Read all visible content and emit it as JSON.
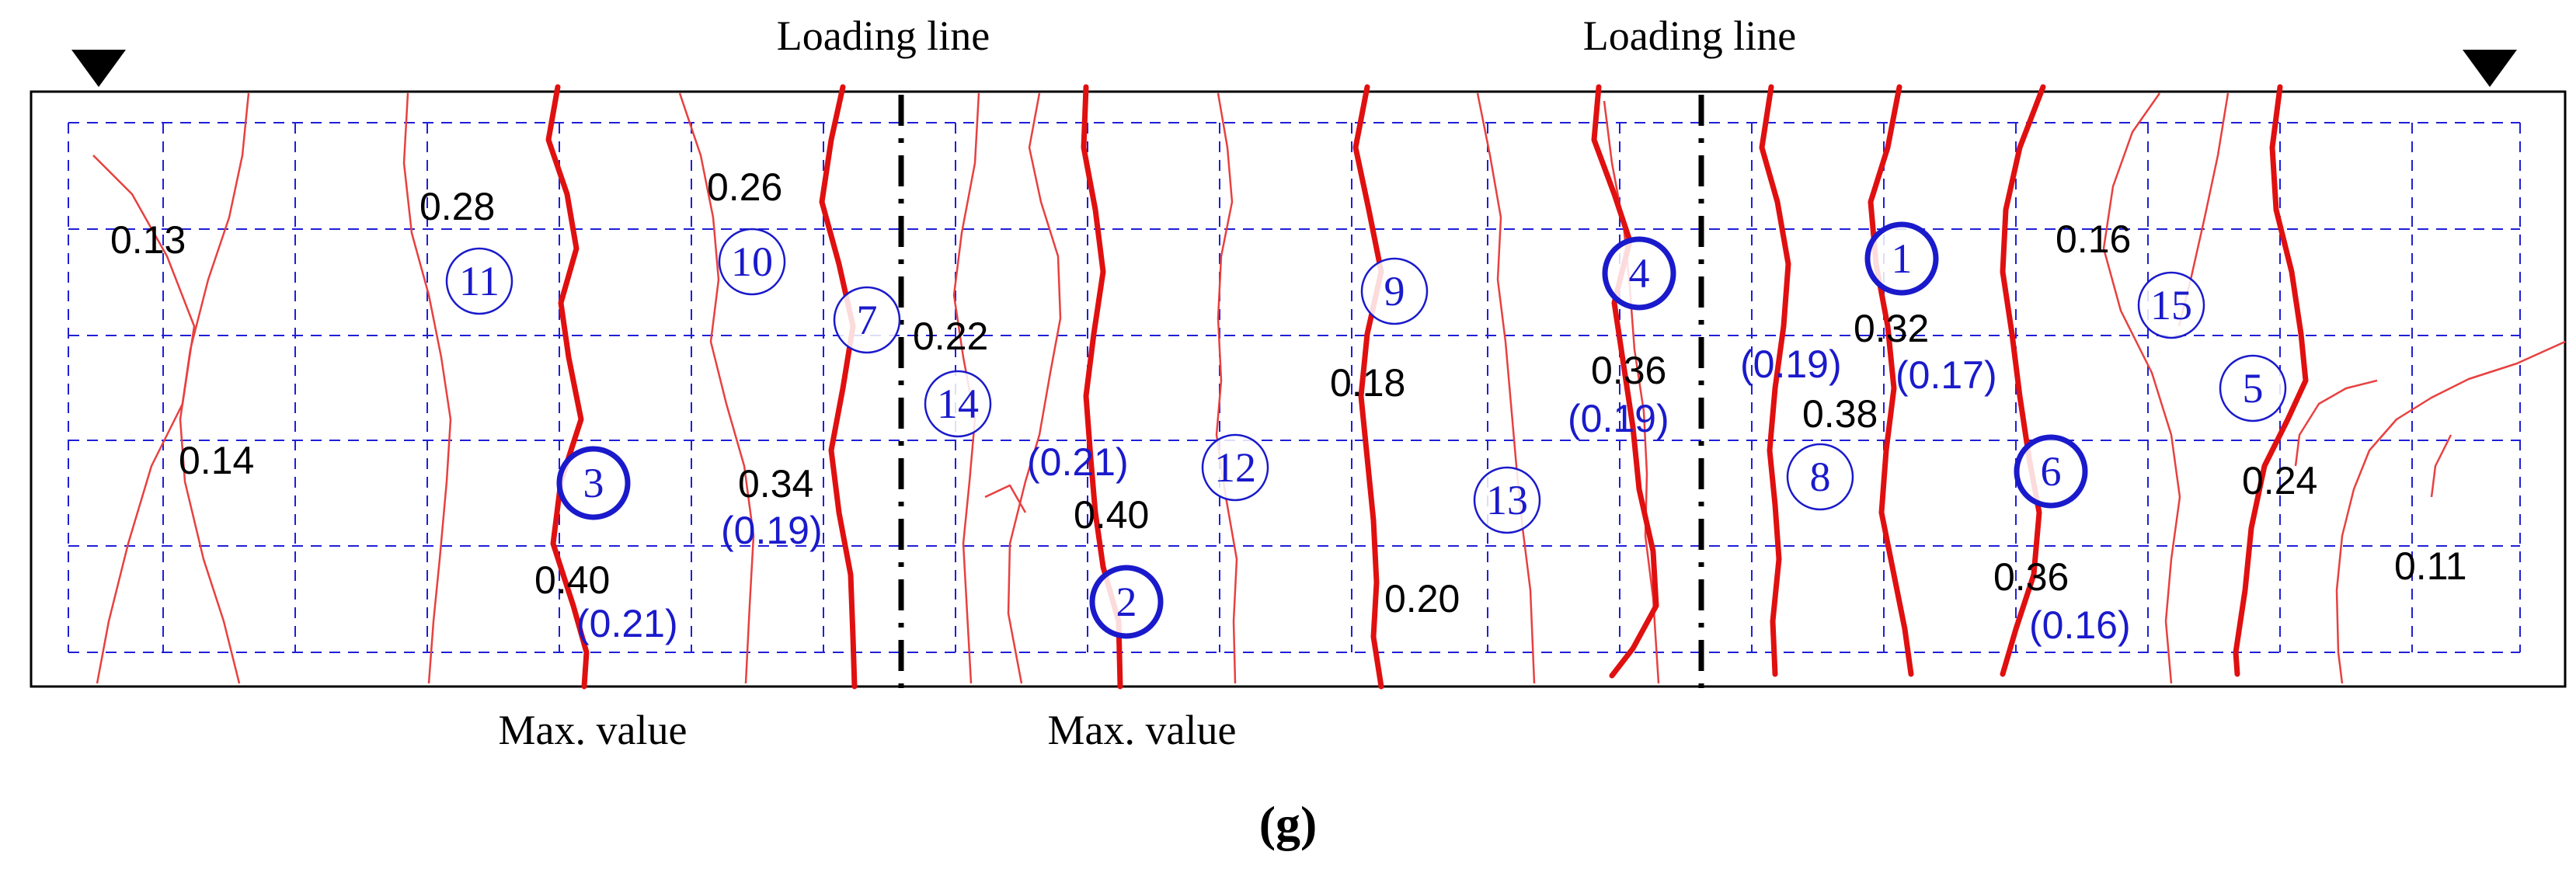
{
  "labels": {
    "loading_line_left": "Loading line",
    "loading_line_right": "Loading line",
    "max_value_left": "Max. value",
    "max_value_right": "Max. value",
    "figure_label": "(g)"
  },
  "colors": {
    "beam_outline": "#000000",
    "grid": "#1f1fd8",
    "major_crack": "#e01010",
    "minor_crack": "#e84040",
    "black_value": "#000000",
    "blue_value": "#1a1acc"
  },
  "crack_widths": [
    {
      "text": "0.13"
    },
    {
      "text": "0.14"
    },
    {
      "text": "0.28"
    },
    {
      "text": "0.40"
    },
    {
      "text": "(0.21)"
    },
    {
      "text": "0.26"
    },
    {
      "text": "0.34"
    },
    {
      "text": "(0.19)"
    },
    {
      "text": "0.22"
    },
    {
      "text": "(0.21)"
    },
    {
      "text": "0.40"
    },
    {
      "text": "0.18"
    },
    {
      "text": "0.20"
    },
    {
      "text": "0.36"
    },
    {
      "text": "(0.19)"
    },
    {
      "text": "(0.19)"
    },
    {
      "text": "0.32"
    },
    {
      "text": "(0.17)"
    },
    {
      "text": "0.38"
    },
    {
      "text": "0.16"
    },
    {
      "text": "0.36"
    },
    {
      "text": "(0.16)"
    },
    {
      "text": "0.24"
    },
    {
      "text": "0.11"
    }
  ],
  "crack_order": [
    {
      "text": "1"
    },
    {
      "text": "2"
    },
    {
      "text": "3"
    },
    {
      "text": "4"
    },
    {
      "text": "5"
    },
    {
      "text": "6"
    },
    {
      "text": "7"
    },
    {
      "text": "8"
    },
    {
      "text": "9"
    },
    {
      "text": "10"
    },
    {
      "text": "11"
    },
    {
      "text": "12"
    },
    {
      "text": "13"
    },
    {
      "text": "14"
    },
    {
      "text": "15"
    }
  ]
}
